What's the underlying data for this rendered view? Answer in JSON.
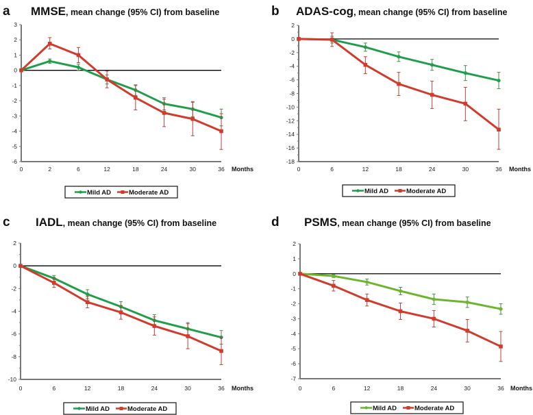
{
  "figure": {
    "legend_labels": [
      "Mild AD",
      "Moderate AD"
    ]
  },
  "chart_data": [
    {
      "panel": "a",
      "type": "line",
      "title": "MMSE",
      "subtitle": ", mean change (95% CI) from baseline",
      "xlabel": "Months",
      "ylabel": "",
      "x": [
        0,
        2,
        6,
        12,
        18,
        24,
        30,
        36
      ],
      "x_ticks": [
        "0",
        "2",
        "6",
        "12",
        "18",
        "24",
        "30",
        "36"
      ],
      "x_categorical": true,
      "ylim": [
        -6,
        3
      ],
      "y_ticks": [
        3,
        2,
        1,
        0,
        -1,
        -2,
        -3,
        -4,
        -5,
        -6
      ],
      "reference_line": 0,
      "grid": false,
      "legend": "bottom",
      "series": [
        {
          "name": "Mild AD",
          "color": "#1f9e4a",
          "values": [
            0,
            0.6,
            0.2,
            -0.6,
            -1.3,
            -2.2,
            -2.55,
            -3.1
          ],
          "ci_low": [
            0,
            0.45,
            0.0,
            -0.9,
            -1.65,
            -2.6,
            -3.05,
            -3.65
          ],
          "ci_high": [
            0,
            0.75,
            0.4,
            -0.3,
            -0.95,
            -1.8,
            -2.05,
            -2.55
          ]
        },
        {
          "name": "Moderate AD",
          "color": "#d23a2c",
          "values": [
            0,
            1.75,
            1.0,
            -0.6,
            -1.8,
            -2.8,
            -3.2,
            -4.0
          ],
          "ci_low": [
            0,
            1.4,
            0.5,
            -1.15,
            -2.6,
            -3.7,
            -4.3,
            -5.2
          ],
          "ci_high": [
            0,
            2.15,
            1.5,
            -0.05,
            -1.0,
            -1.9,
            -2.1,
            -2.85
          ]
        }
      ]
    },
    {
      "panel": "b",
      "type": "line",
      "title": "ADAS-cog",
      "subtitle": ", mean change (95% CI) from baseline",
      "xlabel": "Months",
      "ylabel": "",
      "x": [
        0,
        6,
        12,
        18,
        24,
        30,
        36
      ],
      "x_ticks": [
        "0",
        "6",
        "12",
        "18",
        "24",
        "30",
        "36"
      ],
      "x_categorical": true,
      "ylim": [
        -18,
        2
      ],
      "y_ticks": [
        2,
        0,
        -2,
        -4,
        -6,
        -8,
        -10,
        -12,
        -14,
        -16,
        -18
      ],
      "reference_line": 0,
      "grid": false,
      "legend": "bottom",
      "series": [
        {
          "name": "Mild AD",
          "color": "#1f9e4a",
          "values": [
            0,
            -0.1,
            -1.2,
            -2.6,
            -3.8,
            -5.0,
            -6.1
          ],
          "ci_low": [
            0,
            -0.6,
            -1.8,
            -3.3,
            -4.6,
            -6.1,
            -7.3
          ],
          "ci_high": [
            0,
            0.4,
            -0.6,
            -1.9,
            -3.0,
            -3.9,
            -4.9
          ]
        },
        {
          "name": "Moderate AD",
          "color": "#d23a2c",
          "values": [
            0,
            -0.1,
            -3.8,
            -6.6,
            -8.2,
            -9.5,
            -13.3
          ],
          "ci_low": [
            0,
            -1.1,
            -5.1,
            -8.3,
            -10.2,
            -12.0,
            -16.2
          ],
          "ci_high": [
            0,
            0.9,
            -2.6,
            -4.9,
            -6.2,
            -7.1,
            -10.3
          ]
        }
      ]
    },
    {
      "panel": "c",
      "type": "line",
      "title": "IADL",
      "subtitle": ", mean change (95% CI) from baseline",
      "xlabel": "Months",
      "ylabel": "",
      "x": [
        0,
        6,
        12,
        18,
        24,
        30,
        36
      ],
      "x_ticks": [
        "0",
        "6",
        "12",
        "18",
        "24",
        "30",
        "36"
      ],
      "x_categorical": true,
      "ylim": [
        -10,
        2
      ],
      "y_ticks": [
        2,
        0,
        -2,
        -4,
        -6,
        -8,
        -10
      ],
      "reference_line": 0,
      "grid": false,
      "legend": "bottom",
      "series": [
        {
          "name": "Mild AD",
          "color": "#1f9e4a",
          "values": [
            0,
            -1.1,
            -2.5,
            -3.6,
            -4.8,
            -5.55,
            -6.3
          ],
          "ci_low": [
            0,
            -1.35,
            -2.9,
            -4.05,
            -5.3,
            -6.1,
            -6.9
          ],
          "ci_high": [
            0,
            -0.85,
            -2.1,
            -3.15,
            -4.3,
            -5.0,
            -5.7
          ]
        },
        {
          "name": "Moderate AD",
          "color": "#d23a2c",
          "values": [
            0,
            -1.5,
            -3.2,
            -4.1,
            -5.3,
            -6.2,
            -7.5
          ],
          "ci_low": [
            0,
            -1.9,
            -3.7,
            -4.7,
            -6.1,
            -7.3,
            -8.7
          ],
          "ci_high": [
            0,
            -1.1,
            -2.7,
            -3.5,
            -4.5,
            -5.1,
            -6.3
          ]
        }
      ]
    },
    {
      "panel": "d",
      "type": "line",
      "title": "PSMS",
      "subtitle": ", mean change (95% CI) from baseline",
      "xlabel": "Months",
      "ylabel": "",
      "x": [
        0,
        6,
        12,
        18,
        24,
        30,
        36
      ],
      "x_ticks": [
        "0",
        "6",
        "12",
        "18",
        "24",
        "30",
        "36"
      ],
      "x_categorical": true,
      "ylim": [
        -7,
        2
      ],
      "y_ticks": [
        2,
        1,
        0,
        -1,
        -2,
        -3,
        -4,
        -5,
        -6,
        -7
      ],
      "reference_line": 0,
      "grid": false,
      "legend": "bottom",
      "series": [
        {
          "name": "Mild AD",
          "color": "#6cb62c",
          "values": [
            0,
            -0.15,
            -0.55,
            -1.15,
            -1.7,
            -1.9,
            -2.35
          ],
          "ci_low": [
            0,
            -0.25,
            -0.75,
            -1.4,
            -2.05,
            -2.25,
            -2.7
          ],
          "ci_high": [
            0,
            -0.05,
            -0.35,
            -0.9,
            -1.35,
            -1.55,
            -2.0
          ]
        },
        {
          "name": "Moderate AD",
          "color": "#d23a2c",
          "values": [
            0,
            -0.8,
            -1.75,
            -2.5,
            -3.0,
            -3.8,
            -4.85
          ],
          "ci_low": [
            0,
            -1.15,
            -2.15,
            -3.05,
            -3.55,
            -4.55,
            -5.85
          ],
          "ci_high": [
            0,
            -0.45,
            -1.35,
            -1.95,
            -2.45,
            -3.05,
            -3.85
          ]
        }
      ]
    }
  ]
}
